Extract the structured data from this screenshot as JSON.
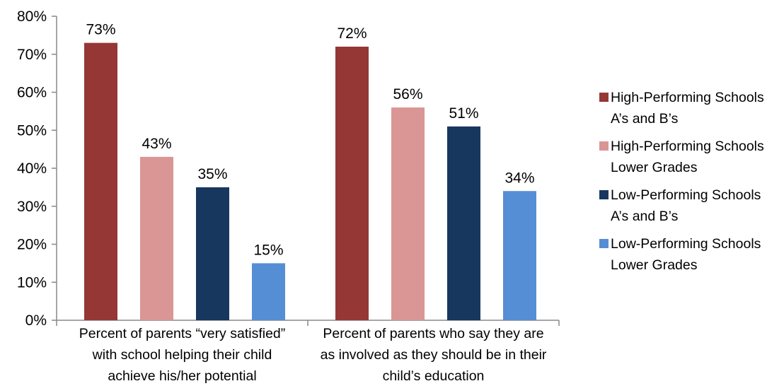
{
  "chart_data": {
    "type": "bar",
    "categories": [
      [
        "Percent of parents “very satisfied”",
        "with school helping their child",
        "achieve his/her potential"
      ],
      [
        "Percent of parents who say they are",
        "as involved as they should be in their",
        "child’s education"
      ]
    ],
    "series": [
      {
        "name": [
          "High-Performing Schools",
          "A’s and B’s"
        ],
        "color": "#953735",
        "values": [
          73,
          72
        ]
      },
      {
        "name": [
          "High-Performing Schools",
          "Lower Grades"
        ],
        "color": "#d99694",
        "values": [
          43,
          56
        ]
      },
      {
        "name": [
          "Low-Performing Schools",
          "A’s and B’s"
        ],
        "color": "#17375e",
        "values": [
          35,
          51
        ]
      },
      {
        "name": [
          "Low-Performing Schools",
          "Lower Grades"
        ],
        "color": "#558ed5",
        "values": [
          15,
          34
        ]
      }
    ],
    "value_labels": [
      [
        "73%",
        "72%"
      ],
      [
        "43%",
        "56%"
      ],
      [
        "35%",
        "51%"
      ],
      [
        "15%",
        "34%"
      ]
    ],
    "yticks": [
      "0%",
      "10%",
      "20%",
      "30%",
      "40%",
      "50%",
      "60%",
      "70%",
      "80%"
    ],
    "ylim": [
      0,
      80
    ],
    "grid": false,
    "legend": "right",
    "title": "",
    "xlabel": "",
    "ylabel": ""
  }
}
